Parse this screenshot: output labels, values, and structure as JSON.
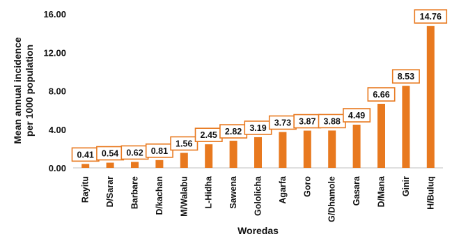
{
  "chart_data": {
    "type": "bar",
    "xlabel": "Woredas",
    "ylabel_lines": [
      "Mean annual incidence",
      "per 1000 population"
    ],
    "ylim": [
      0,
      16
    ],
    "yticks": [
      "0.00",
      "4.00",
      "8.00",
      "12.00",
      "16.00"
    ],
    "grid": false,
    "bar_color": "#E8791F",
    "label_border_color": "#E8791F",
    "categories": [
      "Rayitu",
      "D/Sarar",
      "Barbare",
      "D/kachan",
      "M/Walabu",
      "L-Hidha",
      "Sawena",
      "Gololicha",
      "Agarfa",
      "Goro",
      "G/Dhamole",
      "Gasara",
      "D/Mana",
      "Ginir",
      "H/Buluq"
    ],
    "values": [
      0.41,
      0.54,
      0.62,
      0.81,
      1.56,
      2.45,
      2.82,
      3.19,
      3.73,
      3.87,
      3.88,
      4.49,
      6.66,
      8.53,
      14.76
    ],
    "data_labels": [
      "0.41",
      "0.54",
      "0.62",
      "0.81",
      "1.56",
      "2.45",
      "2.82",
      "3.19",
      "3.73",
      "3.87",
      "3.88",
      "4.49",
      "6.66",
      "8.53",
      "14.76"
    ]
  }
}
